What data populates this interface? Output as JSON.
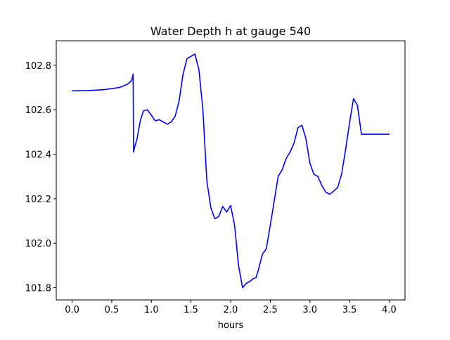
{
  "chart_data": {
    "type": "line",
    "title": "Water Depth h at gauge 540",
    "xlabel": "hours",
    "ylabel": "",
    "xlim": [
      -0.2,
      4.2
    ],
    "ylim": [
      101.745,
      102.91
    ],
    "xticks": [
      0.0,
      0.5,
      1.0,
      1.5,
      2.0,
      2.5,
      3.0,
      3.5,
      4.0
    ],
    "xtick_labels": [
      "0.0",
      "0.5",
      "1.0",
      "1.5",
      "2.0",
      "2.5",
      "3.0",
      "3.5",
      "4.0"
    ],
    "yticks": [
      101.8,
      102.0,
      102.2,
      102.4,
      102.6,
      102.8
    ],
    "ytick_labels": [
      "101.8",
      "102.0",
      "102.2",
      "102.4",
      "102.6",
      "102.8"
    ],
    "grid": false,
    "legend": "none",
    "series": [
      {
        "color": "#0000ff",
        "x": [
          0.0,
          0.2,
          0.4,
          0.6,
          0.7,
          0.75,
          0.77,
          0.775,
          0.78,
          0.82,
          0.86,
          0.9,
          0.95,
          1.0,
          1.05,
          1.1,
          1.15,
          1.2,
          1.25,
          1.3,
          1.35,
          1.4,
          1.45,
          1.5,
          1.55,
          1.6,
          1.65,
          1.7,
          1.75,
          1.8,
          1.85,
          1.9,
          1.95,
          2.0,
          2.05,
          2.1,
          2.15,
          2.2,
          2.25,
          2.28,
          2.32,
          2.35,
          2.4,
          2.45,
          2.5,
          2.55,
          2.6,
          2.65,
          2.7,
          2.75,
          2.8,
          2.85,
          2.9,
          2.95,
          3.0,
          3.05,
          3.1,
          3.15,
          3.2,
          3.25,
          3.3,
          3.35,
          3.4,
          3.45,
          3.5,
          3.55,
          3.6,
          3.65,
          3.7,
          3.75,
          3.8,
          3.85,
          3.9,
          3.95,
          4.0
        ],
        "y": [
          102.685,
          102.686,
          102.69,
          102.7,
          102.715,
          102.73,
          102.76,
          102.41,
          102.42,
          102.47,
          102.55,
          102.595,
          102.6,
          102.575,
          102.55,
          102.555,
          102.545,
          102.535,
          102.545,
          102.57,
          102.64,
          102.76,
          102.83,
          102.84,
          102.85,
          102.78,
          102.6,
          102.28,
          102.16,
          102.11,
          102.12,
          102.165,
          102.14,
          102.17,
          102.08,
          101.9,
          101.8,
          101.82,
          101.83,
          101.84,
          101.845,
          101.88,
          101.95,
          101.975,
          102.08,
          102.19,
          102.3,
          102.33,
          102.38,
          102.41,
          102.45,
          102.52,
          102.53,
          102.47,
          102.36,
          102.31,
          102.3,
          102.26,
          102.23,
          102.22,
          102.235,
          102.25,
          102.31,
          102.42,
          102.54,
          102.65,
          102.62,
          102.49,
          102.49,
          102.49,
          102.49,
          102.49,
          102.49,
          102.49,
          102.49
        ]
      }
    ]
  }
}
